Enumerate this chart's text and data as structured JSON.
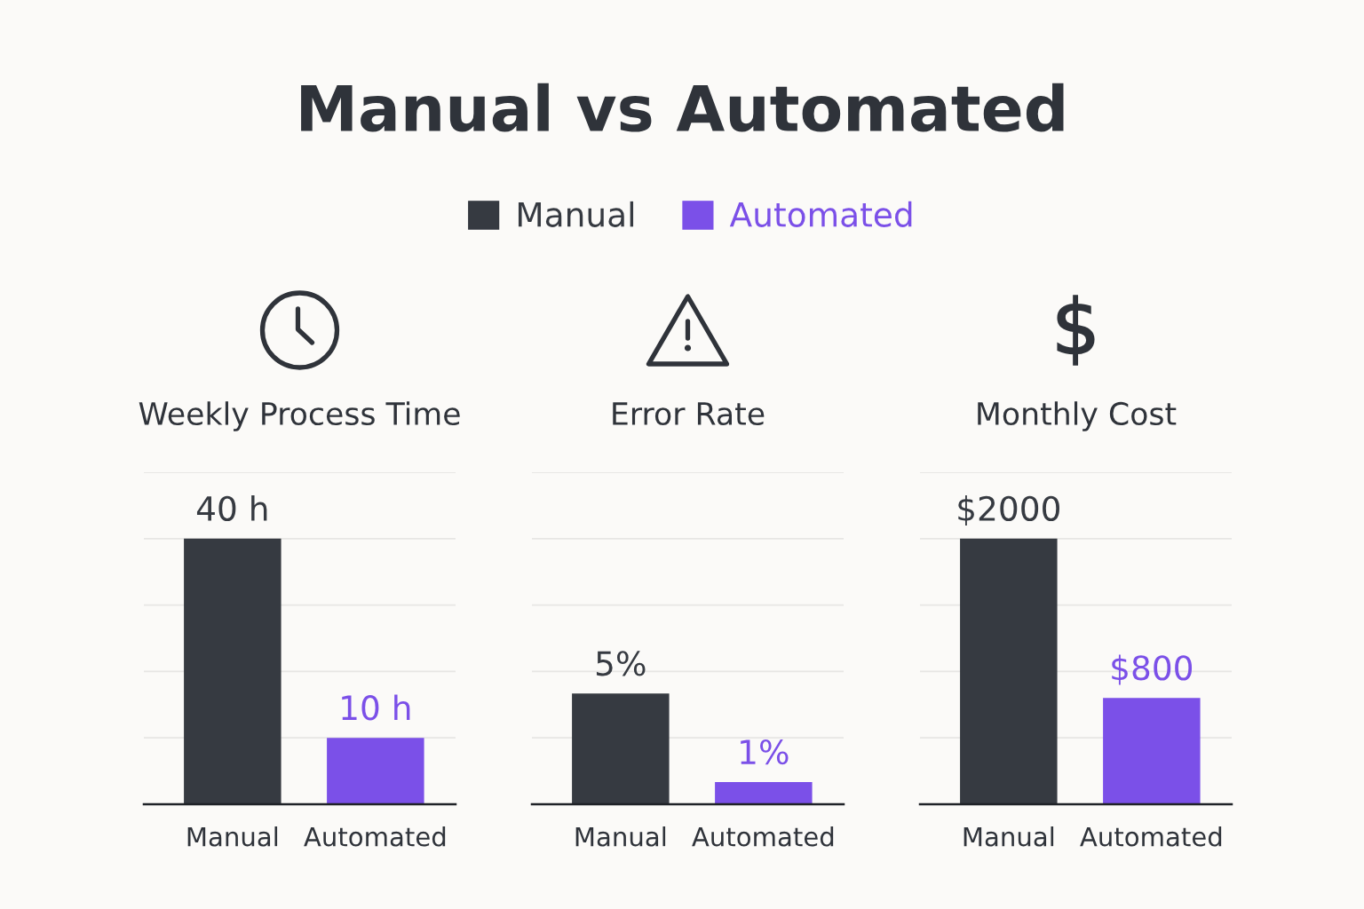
{
  "chart_data": [
    {
      "type": "other",
      "title": "Manual vs Automated"
    },
    {
      "type": "bar",
      "title": "Weekly Process Time",
      "categories": [
        "Manual",
        "Automated"
      ],
      "stacked": true,
      "series": [
        {
          "name": "Manual",
          "color": "#363a41",
          "values": [
            40,
            null
          ],
          "value_labels": [
            "40 h",
            null
          ]
        },
        {
          "name": "Automated",
          "color": "#7b50e8",
          "values": [
            null,
            10
          ],
          "value_labels": [
            null,
            "10 h"
          ]
        }
      ],
      "ylim": [
        0,
        50
      ],
      "yticks": [
        {
          "value": 0,
          "label": null
        },
        {
          "value": 10,
          "label": null
        },
        {
          "value": 20,
          "label": null
        },
        {
          "value": 30,
          "label": null
        },
        {
          "value": 40,
          "label": null
        },
        {
          "value": 50,
          "label": null
        }
      ],
      "grid": "y",
      "tick_labels": "x",
      "legend": "top"
    },
    {
      "type": "bar",
      "title": "Error Rate",
      "categories": [
        "Manual",
        "Automated"
      ],
      "stacked": true,
      "series": [
        {
          "color": "#363a41",
          "values": [
            5,
            null
          ],
          "value_labels": [
            "5%",
            null
          ]
        },
        {
          "color": "#7b50e8",
          "values": [
            null,
            1
          ],
          "value_labels": [
            null,
            "1%"
          ]
        }
      ],
      "ylim": [
        0,
        15
      ],
      "yticks": [
        {
          "value": 0,
          "label": null
        },
        {
          "value": 3,
          "label": null
        },
        {
          "value": 6,
          "label": null
        },
        {
          "value": 9,
          "label": null
        },
        {
          "value": 12,
          "label": null
        },
        {
          "value": 15,
          "label": null
        }
      ],
      "grid": "y",
      "tick_labels": "x"
    },
    {
      "type": "bar",
      "title": "Monthly Cost",
      "categories": [
        "Manual",
        "Automated"
      ],
      "stacked": true,
      "series": [
        {
          "color": "#363a41",
          "values": [
            2000,
            null
          ],
          "value_labels": [
            "$2000",
            null
          ]
        },
        {
          "color": "#7b50e8",
          "values": [
            null,
            800
          ],
          "value_labels": [
            null,
            "$800"
          ]
        }
      ],
      "ylim": [
        0,
        2500
      ],
      "yticks": [
        {
          "value": 0,
          "label": null
        },
        {
          "value": 500,
          "label": null
        },
        {
          "value": 1000,
          "label": null
        },
        {
          "value": 1500,
          "label": null
        },
        {
          "value": 2000,
          "label": null
        },
        {
          "value": 2500,
          "label": null
        }
      ],
      "grid": "y",
      "tick_labels": "x"
    }
  ]
}
